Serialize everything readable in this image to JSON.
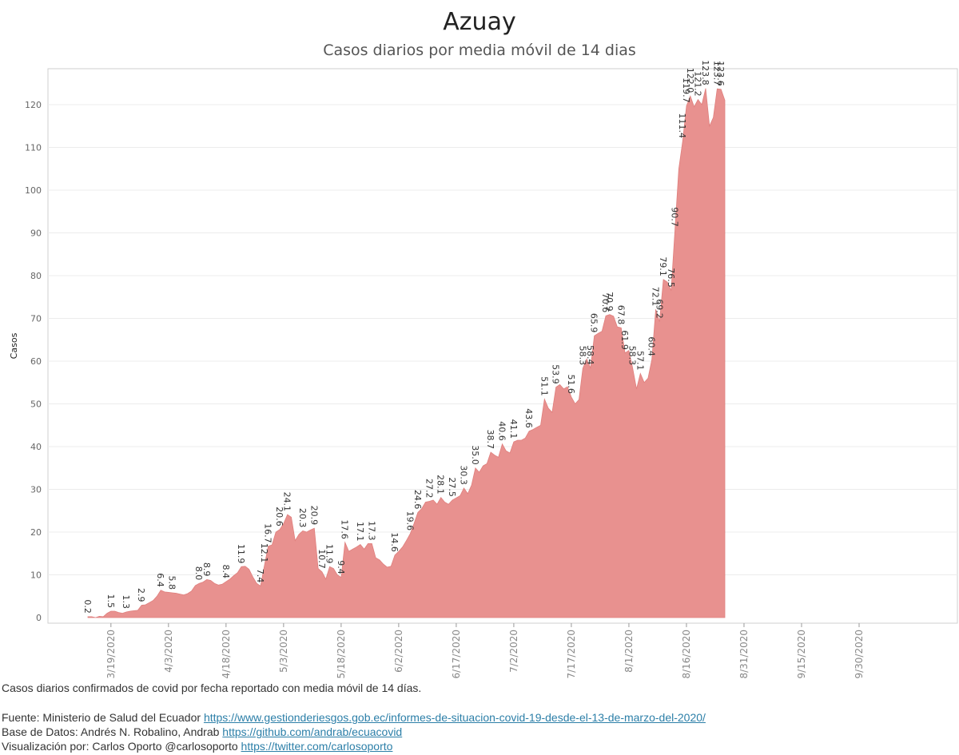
{
  "header": {
    "title": "Azuay",
    "subtitle": "Casos diarios por media móvil de 14 dias"
  },
  "footer": {
    "description": "Casos diarios confirmados de covid por fecha reportado con media móvil de 14 días.",
    "source_label": "Fuente: Ministerio de Salud del Ecuador",
    "source_url": "https://www.gestionderiesgos.gob.ec/informes-de-situacion-covid-19-desde-el-13-de-marzo-del-2020/",
    "db_label": "Base de Datos: Andrés N. Robalino, Andrab",
    "db_url": "https://github.com/andrab/ecuacovid",
    "viz_label": "Visualización por: Carlos Oporto @carlosoporto",
    "viz_url": "https://twitter.com/carlosoporto"
  },
  "chart_data": {
    "type": "area",
    "title": "Azuay",
    "subtitle": "Casos diarios por media móvil de 14 dias",
    "ylabel": "Casos",
    "xlabel": "",
    "ylim": [
      0,
      130
    ],
    "yticks": [
      0,
      10,
      20,
      30,
      40,
      50,
      60,
      70,
      80,
      90,
      100,
      110,
      120
    ],
    "xlim": [
      "3/13/2020",
      "10/1/2020"
    ],
    "xticks": [
      "3/19/2020",
      "4/3/2020",
      "4/18/2020",
      "5/3/2020",
      "5/18/2020",
      "6/2/2020",
      "6/17/2020",
      "7/2/2020",
      "7/17/2020",
      "8/1/2020",
      "8/16/2020",
      "8/31/2020",
      "9/15/2020",
      "9/30/2020"
    ],
    "grid": true,
    "fill_color": "#e8918f",
    "series": [
      {
        "points": [
          [
            "3/13/2020",
            0.2
          ],
          [
            "3/14/2020",
            0.2
          ],
          [
            "3/15/2020",
            0
          ],
          [
            "3/16/2020",
            0.3
          ],
          [
            "3/17/2020",
            0.2
          ],
          [
            "3/18/2020",
            1.0
          ],
          [
            "3/19/2020",
            1.5
          ],
          [
            "3/20/2020",
            1.5
          ],
          [
            "3/21/2020",
            1.2
          ],
          [
            "3/22/2020",
            1.0
          ],
          [
            "3/23/2020",
            1.3
          ],
          [
            "3/24/2020",
            1.5
          ],
          [
            "3/25/2020",
            1.6
          ],
          [
            "3/26/2020",
            1.7
          ],
          [
            "3/27/2020",
            2.9
          ],
          [
            "3/28/2020",
            3.0
          ],
          [
            "3/29/2020",
            3.5
          ],
          [
            "3/30/2020",
            4.0
          ],
          [
            "3/31/2020",
            5.0
          ],
          [
            "4/1/2020",
            6.4
          ],
          [
            "4/2/2020",
            6.0
          ],
          [
            "4/3/2020",
            5.9
          ],
          [
            "4/4/2020",
            5.8
          ],
          [
            "4/5/2020",
            5.7
          ],
          [
            "4/6/2020",
            5.5
          ],
          [
            "4/7/2020",
            5.3
          ],
          [
            "4/8/2020",
            5.6
          ],
          [
            "4/9/2020",
            6.2
          ],
          [
            "4/10/2020",
            7.5
          ],
          [
            "4/11/2020",
            8.0
          ],
          [
            "4/12/2020",
            8.3
          ],
          [
            "4/13/2020",
            8.9
          ],
          [
            "4/14/2020",
            8.7
          ],
          [
            "4/15/2020",
            8.0
          ],
          [
            "4/16/2020",
            7.6
          ],
          [
            "4/17/2020",
            7.8
          ],
          [
            "4/18/2020",
            8.4
          ],
          [
            "4/19/2020",
            9.0
          ],
          [
            "4/20/2020",
            9.8
          ],
          [
            "4/21/2020",
            10.5
          ],
          [
            "4/22/2020",
            11.9
          ],
          [
            "4/23/2020",
            12.0
          ],
          [
            "4/24/2020",
            11.3
          ],
          [
            "4/25/2020",
            9.5
          ],
          [
            "4/26/2020",
            8.0
          ],
          [
            "4/27/2020",
            7.4
          ],
          [
            "4/28/2020",
            12.1
          ],
          [
            "4/29/2020",
            16.7
          ],
          [
            "4/30/2020",
            17.0
          ],
          [
            "5/1/2020",
            20.0
          ],
          [
            "5/2/2020",
            20.6
          ],
          [
            "5/3/2020",
            22.0
          ],
          [
            "5/4/2020",
            24.1
          ],
          [
            "5/5/2020",
            23.5
          ],
          [
            "5/6/2020",
            18.0
          ],
          [
            "5/7/2020",
            19.5
          ],
          [
            "5/8/2020",
            20.3
          ],
          [
            "5/9/2020",
            20.0
          ],
          [
            "5/10/2020",
            20.5
          ],
          [
            "5/11/2020",
            20.9
          ],
          [
            "5/12/2020",
            11.5
          ],
          [
            "5/13/2020",
            10.7
          ],
          [
            "5/14/2020",
            9.0
          ],
          [
            "5/15/2020",
            11.9
          ],
          [
            "5/16/2020",
            11.5
          ],
          [
            "5/17/2020",
            10.0
          ],
          [
            "5/18/2020",
            9.4
          ],
          [
            "5/19/2020",
            17.6
          ],
          [
            "5/20/2020",
            15.5
          ],
          [
            "5/21/2020",
            16.0
          ],
          [
            "5/22/2020",
            16.5
          ],
          [
            "5/23/2020",
            17.1
          ],
          [
            "5/24/2020",
            16.0
          ],
          [
            "5/25/2020",
            17.3
          ],
          [
            "5/26/2020",
            17.3
          ],
          [
            "5/27/2020",
            14.0
          ],
          [
            "5/28/2020",
            13.5
          ],
          [
            "5/29/2020",
            12.5
          ],
          [
            "5/30/2020",
            11.8
          ],
          [
            "5/31/2020",
            12.0
          ],
          [
            "6/1/2020",
            14.6
          ],
          [
            "6/2/2020",
            15.5
          ],
          [
            "6/3/2020",
            16.5
          ],
          [
            "6/4/2020",
            18.0
          ],
          [
            "6/5/2020",
            19.6
          ],
          [
            "6/6/2020",
            22.0
          ],
          [
            "6/7/2020",
            24.6
          ],
          [
            "6/8/2020",
            25.5
          ],
          [
            "6/9/2020",
            27.0
          ],
          [
            "6/10/2020",
            27.2
          ],
          [
            "6/11/2020",
            27.5
          ],
          [
            "6/12/2020",
            26.5
          ],
          [
            "6/13/2020",
            28.1
          ],
          [
            "6/14/2020",
            27.0
          ],
          [
            "6/15/2020",
            26.5
          ],
          [
            "6/16/2020",
            27.5
          ],
          [
            "6/17/2020",
            28.0
          ],
          [
            "6/18/2020",
            28.5
          ],
          [
            "6/19/2020",
            30.3
          ],
          [
            "6/20/2020",
            29.0
          ],
          [
            "6/21/2020",
            31.0
          ],
          [
            "6/22/2020",
            35.0
          ],
          [
            "6/23/2020",
            34.0
          ],
          [
            "6/24/2020",
            35.5
          ],
          [
            "6/25/2020",
            36.0
          ],
          [
            "6/26/2020",
            38.7
          ],
          [
            "6/27/2020",
            38.0
          ],
          [
            "6/28/2020",
            37.5
          ],
          [
            "6/29/2020",
            40.6
          ],
          [
            "6/30/2020",
            39.0
          ],
          [
            "7/1/2020",
            38.5
          ],
          [
            "7/2/2020",
            41.1
          ],
          [
            "7/3/2020",
            41.5
          ],
          [
            "7/4/2020",
            41.5
          ],
          [
            "7/5/2020",
            42.0
          ],
          [
            "7/6/2020",
            43.6
          ],
          [
            "7/7/2020",
            44.0
          ],
          [
            "7/8/2020",
            44.5
          ],
          [
            "7/9/2020",
            45.0
          ],
          [
            "7/10/2020",
            51.1
          ],
          [
            "7/11/2020",
            49.0
          ],
          [
            "7/12/2020",
            48.0
          ],
          [
            "7/13/2020",
            53.9
          ],
          [
            "7/14/2020",
            54.5
          ],
          [
            "7/15/2020",
            53.5
          ],
          [
            "7/16/2020",
            54.0
          ],
          [
            "7/17/2020",
            51.6
          ],
          [
            "7/18/2020",
            50.0
          ],
          [
            "7/19/2020",
            51.0
          ],
          [
            "7/20/2020",
            58.3
          ],
          [
            "7/21/2020",
            60.5
          ],
          [
            "7/22/2020",
            58.4
          ],
          [
            "7/23/2020",
            65.9
          ],
          [
            "7/24/2020",
            66.5
          ],
          [
            "7/25/2020",
            67.0
          ],
          [
            "7/26/2020",
            70.6
          ],
          [
            "7/27/2020",
            70.9
          ],
          [
            "7/28/2020",
            70.5
          ],
          [
            "7/29/2020",
            68.0
          ],
          [
            "7/30/2020",
            67.8
          ],
          [
            "7/31/2020",
            61.9
          ],
          [
            "8/1/2020",
            62.5
          ],
          [
            "8/2/2020",
            58.3
          ],
          [
            "8/3/2020",
            53.5
          ],
          [
            "8/4/2020",
            57.1
          ],
          [
            "8/5/2020",
            55.0
          ],
          [
            "8/6/2020",
            56.0
          ],
          [
            "8/7/2020",
            60.4
          ],
          [
            "8/8/2020",
            72.1
          ],
          [
            "8/9/2020",
            69.2
          ],
          [
            "8/10/2020",
            79.1
          ],
          [
            "8/11/2020",
            78.5
          ],
          [
            "8/12/2020",
            76.5
          ],
          [
            "8/13/2020",
            90.7
          ],
          [
            "8/14/2020",
            105.0
          ],
          [
            "8/15/2020",
            111.4
          ],
          [
            "8/16/2020",
            119.7
          ],
          [
            "8/17/2020",
            122.0
          ],
          [
            "8/18/2020",
            119.5
          ],
          [
            "8/19/2020",
            121.2
          ],
          [
            "8/20/2020",
            120.0
          ],
          [
            "8/21/2020",
            123.8
          ],
          [
            "8/22/2020",
            115.0
          ],
          [
            "8/23/2020",
            117.0
          ],
          [
            "8/24/2020",
            123.7
          ],
          [
            "8/25/2020",
            123.6
          ],
          [
            "8/26/2020",
            121.0
          ]
        ]
      }
    ],
    "data_labels": [
      {
        "date": "3/13/2020",
        "value": 0.2,
        "label": "0.2"
      },
      {
        "date": "3/19/2020",
        "value": 1.5,
        "label": "1.5"
      },
      {
        "date": "3/23/2020",
        "value": 1.3,
        "label": "1.3"
      },
      {
        "date": "3/27/2020",
        "value": 2.9,
        "label": "2.9"
      },
      {
        "date": "4/1/2020",
        "value": 6.4,
        "label": "6.4"
      },
      {
        "date": "4/4/2020",
        "value": 5.8,
        "label": "5.8"
      },
      {
        "date": "4/11/2020",
        "value": 8.0,
        "label": "8.0"
      },
      {
        "date": "4/13/2020",
        "value": 8.9,
        "label": "8.9"
      },
      {
        "date": "4/18/2020",
        "value": 8.4,
        "label": "8.4"
      },
      {
        "date": "4/22/2020",
        "value": 11.9,
        "label": "11.9"
      },
      {
        "date": "4/27/2020",
        "value": 7.4,
        "label": "7.4"
      },
      {
        "date": "4/28/2020",
        "value": 12.1,
        "label": "12.1"
      },
      {
        "date": "4/29/2020",
        "value": 16.7,
        "label": "16.7"
      },
      {
        "date": "5/2/2020",
        "value": 20.6,
        "label": "20.6"
      },
      {
        "date": "5/4/2020",
        "value": 24.1,
        "label": "24.1"
      },
      {
        "date": "5/8/2020",
        "value": 20.3,
        "label": "20.3"
      },
      {
        "date": "5/11/2020",
        "value": 20.9,
        "label": "20.9"
      },
      {
        "date": "5/13/2020",
        "value": 10.7,
        "label": "10.7"
      },
      {
        "date": "5/15/2020",
        "value": 11.9,
        "label": "11.9"
      },
      {
        "date": "5/18/2020",
        "value": 9.4,
        "label": "9.4"
      },
      {
        "date": "5/19/2020",
        "value": 17.6,
        "label": "17.6"
      },
      {
        "date": "5/23/2020",
        "value": 17.1,
        "label": "17.1"
      },
      {
        "date": "5/26/2020",
        "value": 17.3,
        "label": "17.3"
      },
      {
        "date": "6/1/2020",
        "value": 14.6,
        "label": "14.6"
      },
      {
        "date": "6/5/2020",
        "value": 19.6,
        "label": "19.6"
      },
      {
        "date": "6/7/2020",
        "value": 24.6,
        "label": "24.6"
      },
      {
        "date": "6/10/2020",
        "value": 27.2,
        "label": "27.2"
      },
      {
        "date": "6/13/2020",
        "value": 28.1,
        "label": "28.1"
      },
      {
        "date": "6/16/2020",
        "value": 27.5,
        "label": "27.5"
      },
      {
        "date": "6/19/2020",
        "value": 30.3,
        "label": "30.3"
      },
      {
        "date": "6/22/2020",
        "value": 35.0,
        "label": "35.0"
      },
      {
        "date": "6/26/2020",
        "value": 38.7,
        "label": "38.7"
      },
      {
        "date": "6/29/2020",
        "value": 40.6,
        "label": "40.6"
      },
      {
        "date": "7/2/2020",
        "value": 41.1,
        "label": "41.1"
      },
      {
        "date": "7/6/2020",
        "value": 43.6,
        "label": "43.6"
      },
      {
        "date": "7/10/2020",
        "value": 51.1,
        "label": "51.1"
      },
      {
        "date": "7/13/2020",
        "value": 53.9,
        "label": "53.9"
      },
      {
        "date": "7/17/2020",
        "value": 51.6,
        "label": "51.6"
      },
      {
        "date": "7/20/2020",
        "value": 58.3,
        "label": "58.3"
      },
      {
        "date": "7/22/2020",
        "value": 58.4,
        "label": "58.4"
      },
      {
        "date": "7/23/2020",
        "value": 65.9,
        "label": "65.9"
      },
      {
        "date": "7/26/2020",
        "value": 70.6,
        "label": "70.6"
      },
      {
        "date": "7/27/2020",
        "value": 70.9,
        "label": "70.9"
      },
      {
        "date": "7/30/2020",
        "value": 67.8,
        "label": "67.8"
      },
      {
        "date": "7/31/2020",
        "value": 61.9,
        "label": "61.9"
      },
      {
        "date": "8/2/2020",
        "value": 58.3,
        "label": "58.3"
      },
      {
        "date": "8/4/2020",
        "value": 57.1,
        "label": "57.1"
      },
      {
        "date": "8/7/2020",
        "value": 60.4,
        "label": "60.4"
      },
      {
        "date": "8/8/2020",
        "value": 72.1,
        "label": "72.1"
      },
      {
        "date": "8/9/2020",
        "value": 69.2,
        "label": "69.2"
      },
      {
        "date": "8/10/2020",
        "value": 79.1,
        "label": "79.1"
      },
      {
        "date": "8/12/2020",
        "value": 76.5,
        "label": "76.5"
      },
      {
        "date": "8/13/2020",
        "value": 90.7,
        "label": "90.7"
      },
      {
        "date": "8/15/2020",
        "value": 111.4,
        "label": "111.4"
      },
      {
        "date": "8/16/2020",
        "value": 119.7,
        "label": "119.7"
      },
      {
        "date": "8/17/2020",
        "value": 122.0,
        "label": "122.0"
      },
      {
        "date": "8/19/2020",
        "value": 121.2,
        "label": "121.2"
      },
      {
        "date": "8/21/2020",
        "value": 123.8,
        "label": "123.8"
      },
      {
        "date": "8/24/2020",
        "value": 123.7,
        "label": "123.7"
      },
      {
        "date": "8/25/2020",
        "value": 123.6,
        "label": "123.6"
      }
    ]
  }
}
